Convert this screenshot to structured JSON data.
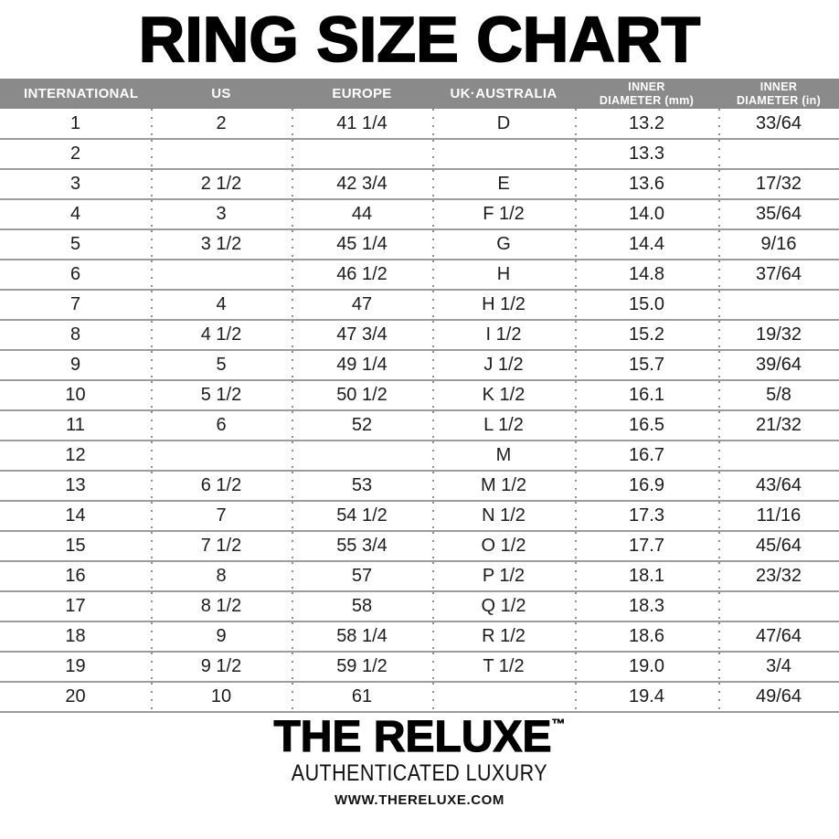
{
  "page": {
    "title": "RING SIZE CHART"
  },
  "colors": {
    "header_bg": "#8a8a8a",
    "header_text": "#ffffff",
    "row_line": "#9c9c9c",
    "dotted_line": "#8f8f8f",
    "body_text": "#1c1c1c",
    "title_text": "#000000"
  },
  "table": {
    "columns": [
      {
        "key": "international",
        "label": "INTERNATIONAL"
      },
      {
        "key": "us",
        "label": "US"
      },
      {
        "key": "europe",
        "label": "EUROPE"
      },
      {
        "key": "uk-australia",
        "label": "UK·AUSTRALIA"
      },
      {
        "key": "inner-diameter-mm",
        "label": "INNER\nDIAMETER (mm)"
      },
      {
        "key": "inner-diameter-in",
        "label": "INNER\nDIAMETER (in)"
      }
    ],
    "rows": [
      [
        "1",
        "2",
        "41 1/4",
        "D",
        "13.2",
        "33/64"
      ],
      [
        "2",
        "",
        "",
        "",
        "13.3",
        ""
      ],
      [
        "3",
        "2 1/2",
        "42 3/4",
        "E",
        "13.6",
        "17/32"
      ],
      [
        "4",
        "3",
        "44",
        "F 1/2",
        "14.0",
        "35/64"
      ],
      [
        "5",
        "3 1/2",
        "45 1/4",
        "G",
        "14.4",
        "9/16"
      ],
      [
        "6",
        "",
        "46 1/2",
        "H",
        "14.8",
        "37/64"
      ],
      [
        "7",
        "4",
        "47",
        "H 1/2",
        "15.0",
        ""
      ],
      [
        "8",
        "4 1/2",
        "47 3/4",
        "I 1/2",
        "15.2",
        "19/32"
      ],
      [
        "9",
        "5",
        "49 1/4",
        "J 1/2",
        "15.7",
        "39/64"
      ],
      [
        "10",
        "5 1/2",
        "50 1/2",
        "K 1/2",
        "16.1",
        "5/8"
      ],
      [
        "11",
        "6",
        "52",
        "L 1/2",
        "16.5",
        "21/32"
      ],
      [
        "12",
        "",
        "",
        "M",
        "16.7",
        ""
      ],
      [
        "13",
        "6 1/2",
        "53",
        "M 1/2",
        "16.9",
        "43/64"
      ],
      [
        "14",
        "7",
        "54 1/2",
        "N 1/2",
        "17.3",
        "11/16"
      ],
      [
        "15",
        "7 1/2",
        "55 3/4",
        "O 1/2",
        "17.7",
        "45/64"
      ],
      [
        "16",
        "8",
        "57",
        "P 1/2",
        "18.1",
        "23/32"
      ],
      [
        "17",
        "8 1/2",
        "58",
        "Q 1/2",
        "18.3",
        ""
      ],
      [
        "18",
        "9",
        "58 1/4",
        "R 1/2",
        "18.6",
        "47/64"
      ],
      [
        "19",
        "9 1/2",
        "59 1/2",
        "T 1/2",
        "19.0",
        "3/4"
      ],
      [
        "20",
        "10",
        "61",
        "",
        "19.4",
        "49/64"
      ]
    ]
  },
  "footer": {
    "brand": "THE RELUXE",
    "trademark": "™",
    "tagline": "AUTHENTICATED LUXURY",
    "website": "WWW.THERELUXE.COM"
  }
}
